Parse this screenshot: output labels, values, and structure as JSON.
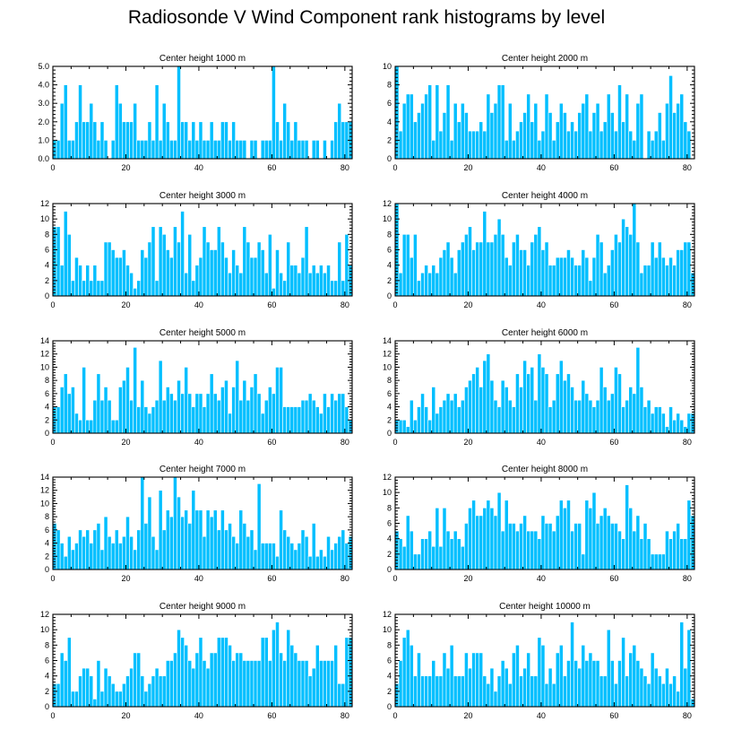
{
  "title": "Radiosonde V Wind Component rank histograms by level",
  "colors": {
    "bar_fill": "#00bfff",
    "bar_edge": "#ffffff",
    "axis": "#000000"
  },
  "chart_data": [
    {
      "type": "bar",
      "title": "Center height 1000 m",
      "xlim": [
        0,
        82
      ],
      "ylim": [
        0,
        5
      ],
      "xticks": [
        0,
        20,
        40,
        60,
        80
      ],
      "yticks": [
        0,
        1,
        2,
        3,
        4,
        5
      ],
      "ytick_labels": [
        "0.0",
        "1.0",
        "2.0",
        "3.0",
        "4.0",
        "5.0"
      ],
      "values": [
        1,
        1,
        3,
        4,
        1,
        1,
        2,
        4,
        2,
        2,
        3,
        2,
        1,
        2,
        1,
        0,
        1,
        4,
        3,
        2,
        2,
        2,
        3,
        1,
        1,
        1,
        2,
        1,
        4,
        1,
        3,
        2,
        1,
        1,
        5,
        2,
        2,
        1,
        2,
        1,
        2,
        1,
        1,
        2,
        1,
        1,
        2,
        2,
        1,
        2,
        1,
        1,
        1,
        0,
        1,
        1,
        0,
        1,
        1,
        1,
        5,
        2,
        1,
        3,
        2,
        1,
        2,
        1,
        1,
        1,
        0,
        1,
        1,
        0,
        1,
        0,
        1,
        2,
        3,
        2,
        2,
        2
      ]
    },
    {
      "type": "bar",
      "title": "Center height 2000 m",
      "xlim": [
        0,
        82
      ],
      "ylim": [
        0,
        10
      ],
      "xticks": [
        0,
        20,
        40,
        60,
        80
      ],
      "yticks": [
        0,
        2,
        4,
        6,
        8,
        10
      ],
      "ytick_labels": [
        "0",
        "2",
        "4",
        "6",
        "8",
        "10"
      ],
      "values": [
        10,
        3,
        6,
        7,
        7,
        4,
        5,
        6,
        7,
        8,
        2,
        8,
        3,
        5,
        8,
        2,
        6,
        4,
        6,
        5,
        3,
        3,
        3,
        4,
        3,
        7,
        5,
        6,
        8,
        8,
        2,
        6,
        2,
        3,
        4,
        5,
        7,
        4,
        6,
        2,
        3,
        7,
        5,
        2,
        4,
        6,
        5,
        3,
        4,
        3,
        5,
        6,
        7,
        3,
        5,
        6,
        3,
        4,
        7,
        5,
        3,
        8,
        4,
        7,
        3,
        2,
        6,
        7,
        0,
        3,
        2,
        3,
        5,
        2,
        6,
        9,
        5,
        6,
        7,
        4,
        3,
        0
      ]
    },
    {
      "type": "bar",
      "title": "Center height 3000 m",
      "xlim": [
        0,
        82
      ],
      "ylim": [
        0,
        12
      ],
      "xticks": [
        0,
        20,
        40,
        60,
        80
      ],
      "yticks": [
        0,
        2,
        4,
        6,
        8,
        10,
        12
      ],
      "ytick_labels": [
        "0",
        "2",
        "4",
        "6",
        "8",
        "10",
        "12"
      ],
      "values": [
        9,
        9,
        4,
        11,
        8,
        2,
        5,
        4,
        2,
        4,
        2,
        4,
        2,
        2,
        7,
        7,
        6,
        5,
        5,
        6,
        4,
        3,
        1,
        2,
        6,
        5,
        7,
        9,
        2,
        9,
        8,
        6,
        5,
        9,
        7,
        11,
        3,
        8,
        2,
        4,
        5,
        9,
        7,
        6,
        6,
        9,
        7,
        5,
        3,
        6,
        4,
        3,
        9,
        7,
        5,
        5,
        7,
        6,
        3,
        8,
        1,
        6,
        3,
        2,
        7,
        4,
        4,
        3,
        5,
        9,
        3,
        4,
        3,
        4,
        3,
        4,
        2,
        2,
        7,
        2,
        8,
        4
      ]
    },
    {
      "type": "bar",
      "title": "Center height 4000 m",
      "xlim": [
        0,
        82
      ],
      "ylim": [
        0,
        12
      ],
      "xticks": [
        0,
        20,
        40,
        60,
        80
      ],
      "yticks": [
        0,
        2,
        4,
        6,
        8,
        10,
        12
      ],
      "ytick_labels": [
        "0",
        "2",
        "4",
        "6",
        "8",
        "10",
        "12"
      ],
      "values": [
        12,
        3,
        8,
        8,
        5,
        8,
        2,
        3,
        4,
        3,
        4,
        3,
        5,
        6,
        7,
        5,
        3,
        6,
        7,
        8,
        9,
        6,
        7,
        7,
        11,
        7,
        7,
        8,
        10,
        8,
        5,
        4,
        7,
        8,
        6,
        6,
        4,
        7,
        8,
        9,
        6,
        7,
        4,
        4,
        5,
        5,
        5,
        6,
        5,
        4,
        4,
        6,
        5,
        2,
        5,
        8,
        7,
        3,
        4,
        6,
        8,
        7,
        10,
        9,
        8,
        12,
        7,
        3,
        4,
        4,
        7,
        5,
        7,
        5,
        4,
        5,
        4,
        6,
        6,
        7,
        7,
        3
      ]
    },
    {
      "type": "bar",
      "title": "Center height 5000 m",
      "xlim": [
        0,
        82
      ],
      "ylim": [
        0,
        14
      ],
      "xticks": [
        0,
        20,
        40,
        60,
        80
      ],
      "yticks": [
        0,
        2,
        4,
        6,
        8,
        10,
        12,
        14
      ],
      "ytick_labels": [
        "0",
        "2",
        "4",
        "6",
        "8",
        "10",
        "12",
        "14"
      ],
      "values": [
        4,
        4,
        7,
        9,
        6,
        7,
        3,
        2,
        10,
        2,
        2,
        5,
        9,
        5,
        7,
        5,
        2,
        2,
        7,
        8,
        10,
        5,
        13,
        4,
        8,
        4,
        3,
        4,
        5,
        11,
        5,
        7,
        6,
        5,
        8,
        6,
        10,
        6,
        4,
        6,
        6,
        4,
        6,
        9,
        6,
        5,
        7,
        8,
        3,
        7,
        11,
        5,
        8,
        5,
        7,
        9,
        6,
        3,
        5,
        7,
        6,
        10,
        10,
        4,
        4,
        4,
        4,
        4,
        5,
        5,
        6,
        5,
        4,
        3,
        6,
        4,
        6,
        5,
        6,
        6,
        4,
        2
      ]
    },
    {
      "type": "bar",
      "title": "Center height 6000 m",
      "xlim": [
        0,
        82
      ],
      "ylim": [
        0,
        14
      ],
      "xticks": [
        0,
        20,
        40,
        60,
        80
      ],
      "yticks": [
        0,
        2,
        4,
        6,
        8,
        10,
        12,
        14
      ],
      "ytick_labels": [
        "0",
        "2",
        "4",
        "6",
        "8",
        "10",
        "12",
        "14"
      ],
      "values": [
        2,
        2,
        2,
        1,
        5,
        2,
        4,
        6,
        4,
        2,
        7,
        3,
        4,
        5,
        6,
        5,
        6,
        4,
        5,
        7,
        8,
        9,
        10,
        7,
        11,
        12,
        8,
        5,
        4,
        8,
        7,
        5,
        4,
        9,
        7,
        11,
        9,
        10,
        5,
        12,
        10,
        9,
        4,
        5,
        9,
        11,
        8,
        9,
        7,
        5,
        5,
        8,
        6,
        5,
        4,
        5,
        10,
        7,
        5,
        6,
        10,
        9,
        4,
        5,
        7,
        6,
        13,
        7,
        4,
        5,
        3,
        4,
        4,
        3,
        1,
        4,
        2,
        3,
        2,
        1,
        3,
        3
      ]
    },
    {
      "type": "bar",
      "title": "Center height 7000 m",
      "xlim": [
        0,
        82
      ],
      "ylim": [
        0,
        14
      ],
      "xticks": [
        0,
        20,
        40,
        60,
        80
      ],
      "yticks": [
        0,
        2,
        4,
        6,
        8,
        10,
        12,
        14
      ],
      "ytick_labels": [
        "0",
        "2",
        "4",
        "6",
        "8",
        "10",
        "12",
        "14"
      ],
      "values": [
        7,
        6,
        4,
        2,
        5,
        3,
        4,
        6,
        5,
        6,
        4,
        6,
        7,
        3,
        8,
        5,
        4,
        6,
        4,
        5,
        8,
        5,
        3,
        6,
        14,
        7,
        11,
        5,
        3,
        12,
        6,
        9,
        8,
        14,
        11,
        8,
        9,
        7,
        12,
        9,
        9,
        5,
        9,
        8,
        9,
        6,
        9,
        6,
        7,
        5,
        4,
        9,
        7,
        5,
        6,
        3,
        13,
        4,
        4,
        4,
        4,
        2,
        9,
        6,
        5,
        4,
        3,
        4,
        6,
        5,
        2,
        7,
        2,
        3,
        2,
        5,
        3,
        4,
        5,
        6,
        4,
        5
      ]
    },
    {
      "type": "bar",
      "title": "Center height 8000 m",
      "xlim": [
        0,
        82
      ],
      "ylim": [
        0,
        12
      ],
      "xticks": [
        0,
        20,
        40,
        60,
        80
      ],
      "yticks": [
        0,
        2,
        4,
        6,
        8,
        10,
        12
      ],
      "ytick_labels": [
        "0",
        "2",
        "4",
        "6",
        "8",
        "10",
        "12"
      ],
      "values": [
        5,
        4,
        3,
        7,
        5,
        2,
        2,
        4,
        4,
        5,
        3,
        8,
        3,
        8,
        5,
        4,
        5,
        4,
        3,
        6,
        8,
        9,
        7,
        7,
        8,
        9,
        8,
        7,
        10,
        5,
        9,
        6,
        6,
        5,
        6,
        7,
        5,
        5,
        5,
        4,
        7,
        6,
        6,
        5,
        7,
        9,
        8,
        9,
        5,
        6,
        6,
        2,
        9,
        8,
        10,
        6,
        7,
        8,
        7,
        6,
        6,
        5,
        4,
        11,
        8,
        5,
        7,
        4,
        6,
        4,
        2,
        2,
        2,
        2,
        5,
        4,
        5,
        6,
        4,
        4,
        9,
        7
      ]
    },
    {
      "type": "bar",
      "title": "Center height 9000 m",
      "xlim": [
        0,
        82
      ],
      "ylim": [
        0,
        12
      ],
      "xticks": [
        0,
        20,
        40,
        60,
        80
      ],
      "yticks": [
        0,
        2,
        4,
        6,
        8,
        10,
        12
      ],
      "ytick_labels": [
        "0",
        "2",
        "4",
        "6",
        "8",
        "10",
        "12"
      ],
      "values": [
        3,
        3,
        7,
        6,
        9,
        2,
        2,
        4,
        5,
        5,
        4,
        1,
        6,
        2,
        5,
        4,
        3,
        2,
        2,
        3,
        4,
        5,
        7,
        7,
        4,
        2,
        3,
        4,
        5,
        4,
        4,
        6,
        6,
        7,
        10,
        9,
        8,
        6,
        5,
        7,
        9,
        6,
        5,
        7,
        7,
        9,
        9,
        9,
        8,
        6,
        7,
        7,
        6,
        6,
        6,
        6,
        6,
        9,
        9,
        6,
        10,
        11,
        7,
        6,
        10,
        8,
        7,
        6,
        6,
        6,
        4,
        5,
        8,
        6,
        6,
        6,
        6,
        8,
        3,
        3,
        9,
        9
      ]
    },
    {
      "type": "bar",
      "title": "Center height 10000 m",
      "xlim": [
        0,
        82
      ],
      "ylim": [
        0,
        12
      ],
      "xticks": [
        0,
        20,
        40,
        60,
        80
      ],
      "yticks": [
        0,
        2,
        4,
        6,
        8,
        10,
        12
      ],
      "ytick_labels": [
        "0",
        "2",
        "4",
        "6",
        "8",
        "10",
        "12"
      ],
      "values": [
        3,
        6,
        9,
        10,
        8,
        4,
        7,
        4,
        4,
        4,
        6,
        4,
        4,
        7,
        5,
        8,
        4,
        4,
        4,
        7,
        5,
        7,
        7,
        7,
        4,
        3,
        5,
        2,
        4,
        6,
        5,
        3,
        7,
        8,
        4,
        5,
        7,
        4,
        4,
        9,
        8,
        3,
        5,
        3,
        7,
        8,
        4,
        6,
        11,
        6,
        5,
        8,
        6,
        7,
        6,
        6,
        4,
        4,
        10,
        6,
        3,
        6,
        9,
        4,
        7,
        8,
        6,
        5,
        4,
        3,
        7,
        5,
        4,
        3,
        5,
        3,
        4,
        2,
        11,
        5,
        10,
        1
      ]
    }
  ]
}
